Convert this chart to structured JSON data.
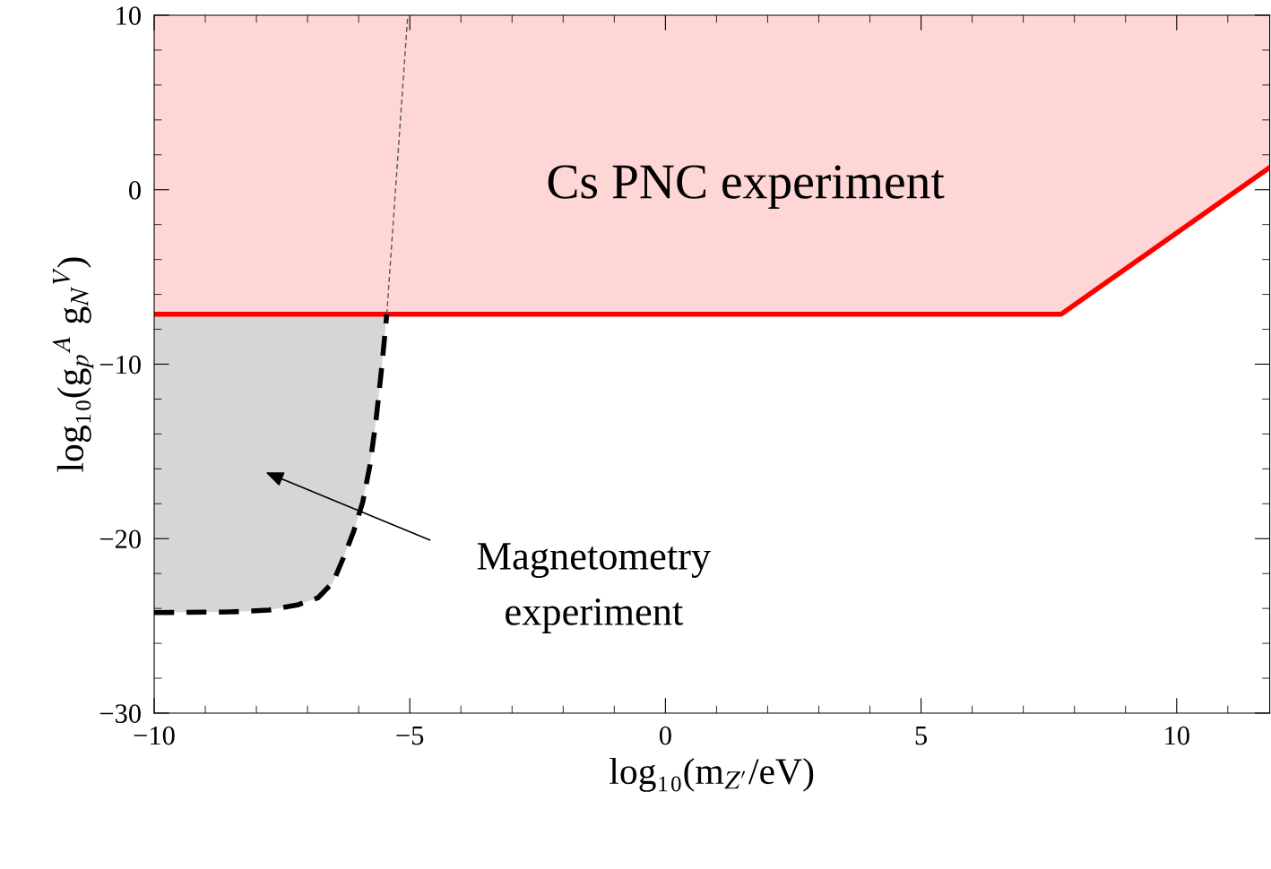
{
  "chart_data": {
    "type": "line",
    "xlabel": "log₁₀(m$_{Z′}$/eV)",
    "ylabel": "log₁₀(g$_{p}$$^{A}$ g$_{N}$$^{V}$)",
    "xlim": [
      -10,
      11.82
    ],
    "ylim": [
      -30,
      10
    ],
    "xticks": [
      -10,
      -5,
      0,
      5,
      10
    ],
    "yticks": [
      -30,
      -20,
      -10,
      0,
      10
    ],
    "grid": false,
    "legend": false,
    "series": [
      {
        "color": "#ff0000",
        "line_style": "solid",
        "x": [
          -10,
          7.74,
          11.82
        ],
        "values": [
          -7.14,
          -7.14,
          1.28
        ],
        "lower": [
          -7.14,
          -7.14,
          1.28
        ],
        "upper": [
          10,
          10,
          10
        ]
      },
      {
        "color": "#000000",
        "line_style": "dashed",
        "x": [
          -10,
          -8.5,
          -7.76,
          -7.2,
          -6.8,
          -6.5,
          -6.27,
          -6.1,
          -5.92,
          -5.78,
          -5.66,
          -5.55,
          -5.45
        ],
        "values": [
          -24.24,
          -24.2,
          -24.1,
          -23.8,
          -23.4,
          -22.5,
          -20.9,
          -19.6,
          -17.9,
          -15.8,
          -13.2,
          -10.2,
          -7.14
        ],
        "lower": [
          -24.24,
          -24.2,
          -24.1,
          -23.8,
          -23.4,
          -22.5,
          -20.9,
          -19.6,
          -17.9,
          -15.8,
          -13.2,
          -10.2,
          -7.14
        ],
        "upper": [
          -7.14,
          -7.14,
          -7.14,
          -7.14,
          -7.14,
          -7.14,
          -7.14,
          -7.14,
          -7.14,
          -7.14,
          -7.14,
          -7.14,
          -7.14
        ]
      },
      {
        "color": "#555555",
        "line_style": "dashed",
        "x": [
          -5.45,
          -5.04
        ],
        "values": [
          -7.14,
          10
        ]
      }
    ],
    "annotations": [
      "Cs PNC experiment",
      "Magnetometry\nexperiment"
    ]
  }
}
